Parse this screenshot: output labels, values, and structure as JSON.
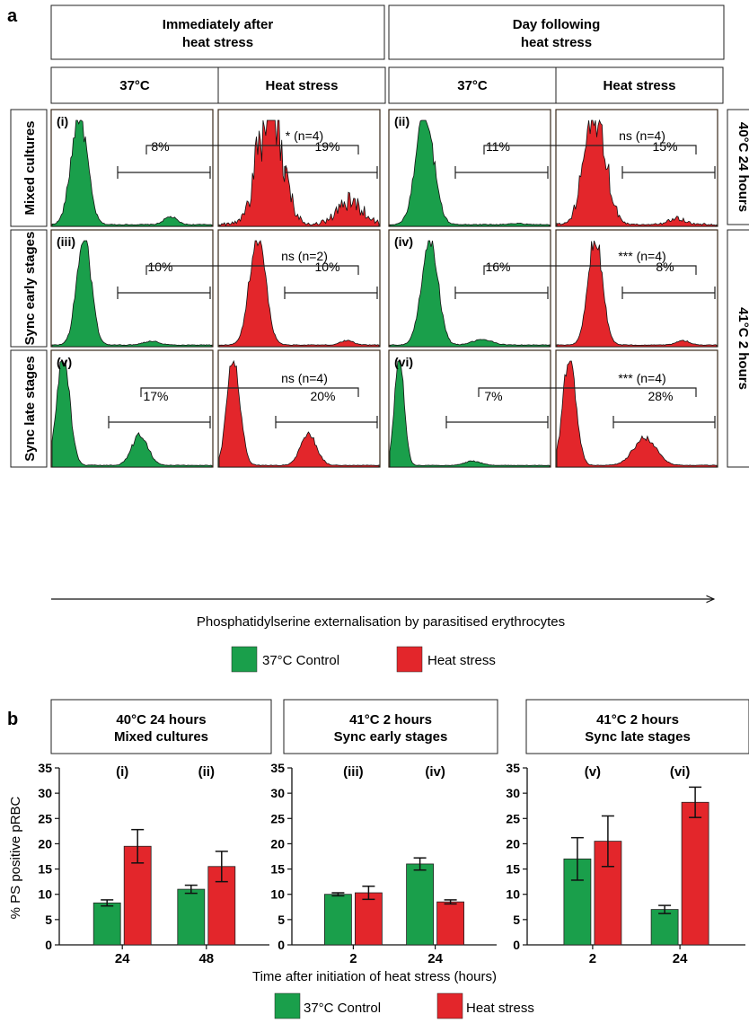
{
  "panel_a": {
    "letter": "a",
    "col_groups": [
      "Immediately after heat stress",
      "Day following heat stress"
    ],
    "columns": [
      "37°C",
      "Heat stress",
      "37°C",
      "Heat stress"
    ],
    "row_labels": [
      "Mixed cultures",
      "Sync early stages",
      "Sync late stages"
    ],
    "right_labels": [
      "40°C 24 hours",
      "41°C 2 hours"
    ],
    "xlabel": "Phosphatidylserine externalisation by parasitised erythrocytes",
    "legend": [
      {
        "label": "37°C Control",
        "color": "#1a9f4b"
      },
      {
        "label": "Heat stress",
        "color": "#e3262b"
      }
    ],
    "cells": [
      {
        "roman": "(i)",
        "control_pct": "8%",
        "heat_pct": "19%",
        "sig": "* (n=4)"
      },
      {
        "roman": "(ii)",
        "control_pct": "11%",
        "heat_pct": "15%",
        "sig": "ns (n=4)"
      },
      {
        "roman": "(iii)",
        "control_pct": "10%",
        "heat_pct": "10%",
        "sig": "ns (n=2)"
      },
      {
        "roman": "(iv)",
        "control_pct": "16%",
        "heat_pct": "8%",
        "sig": "*** (n=4)"
      },
      {
        "roman": "(v)",
        "control_pct": "17%",
        "heat_pct": "20%",
        "sig": "ns (n=4)"
      },
      {
        "roman": "(vi)",
        "control_pct": "7%",
        "heat_pct": "28%",
        "sig": "*** (n=4)"
      }
    ]
  },
  "chart_data": [
    {
      "type": "bar",
      "title": "40°C 24 hours\nMixed cultures",
      "categories": [
        "24",
        "48"
      ],
      "category_tags": [
        "(i)",
        "(ii)"
      ],
      "series": [
        {
          "name": "37°C Control",
          "values": [
            8.3,
            11.0
          ],
          "errors": [
            0.6,
            0.8
          ]
        },
        {
          "name": "Heat stress",
          "values": [
            19.5,
            15.5
          ],
          "errors": [
            3.3,
            3.0
          ]
        }
      ],
      "ylabel": "% PS positive pRBC",
      "ylim": [
        0,
        35
      ],
      "yticks": [
        0,
        5,
        10,
        15,
        20,
        25,
        30,
        35
      ]
    },
    {
      "type": "bar",
      "title": "41°C 2 hours\nSync early stages",
      "categories": [
        "2",
        "24"
      ],
      "category_tags": [
        "(iii)",
        "(iv)"
      ],
      "series": [
        {
          "name": "37°C Control",
          "values": [
            10.0,
            16.0
          ],
          "errors": [
            0.3,
            1.2
          ]
        },
        {
          "name": "Heat stress",
          "values": [
            10.3,
            8.5
          ],
          "errors": [
            1.3,
            0.4
          ]
        }
      ],
      "ylim": [
        0,
        35
      ],
      "yticks": [
        0,
        5,
        10,
        15,
        20,
        25,
        30,
        35
      ]
    },
    {
      "type": "bar",
      "title": "41°C 2 hours\nSync late stages",
      "categories": [
        "2",
        "24"
      ],
      "category_tags": [
        "(v)",
        "(vi)"
      ],
      "series": [
        {
          "name": "37°C Control",
          "values": [
            17.0,
            7.0
          ],
          "errors": [
            4.2,
            0.8
          ]
        },
        {
          "name": "Heat stress",
          "values": [
            20.5,
            28.2
          ],
          "errors": [
            5.0,
            3.0
          ]
        }
      ],
      "ylim": [
        0,
        35
      ],
      "yticks": [
        0,
        5,
        10,
        15,
        20,
        25,
        30,
        35
      ]
    }
  ],
  "panel_b": {
    "letter": "b",
    "xlabel": "Time after initiation of heat stress (hours)",
    "legend": [
      {
        "label": "37°C Control",
        "color": "#1a9f4b"
      },
      {
        "label": "Heat stress",
        "color": "#e3262b"
      }
    ]
  }
}
